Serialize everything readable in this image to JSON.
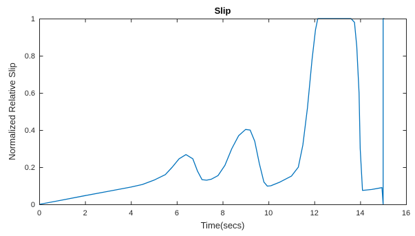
{
  "chart_data": {
    "type": "line",
    "title": "Slip",
    "xlabel": "Time(secs)",
    "ylabel": "Normalized Relative Slip",
    "xlim": [
      0,
      16
    ],
    "ylim": [
      0,
      1
    ],
    "xticks": [
      0,
      2,
      4,
      6,
      8,
      10,
      12,
      14,
      16
    ],
    "yticks": [
      0,
      0.2,
      0.4,
      0.6,
      0.8,
      1
    ],
    "xtick_labels": [
      "0",
      "2",
      "4",
      "6",
      "8",
      "10",
      "12",
      "14",
      "16"
    ],
    "ytick_labels": [
      "0",
      "0.2",
      "0.4",
      "0.6",
      "0.8",
      "1"
    ],
    "grid": false,
    "series": [
      {
        "color": "#0072bd",
        "x": [
          0,
          1,
          2,
          3,
          4,
          4.5,
          5,
          5.5,
          5.8,
          6.1,
          6.4,
          6.7,
          6.9,
          7.1,
          7.3,
          7.5,
          7.8,
          8.1,
          8.4,
          8.7,
          9.0,
          9.2,
          9.4,
          9.6,
          9.8,
          9.95,
          10.1,
          10.5,
          11.0,
          11.3,
          11.5,
          11.7,
          11.9,
          12.05,
          12.15,
          12.5,
          13.0,
          13.6,
          13.75,
          13.85,
          13.95,
          14.0,
          14.1,
          14.5,
          14.95,
          14.95,
          15.0,
          15.0,
          15.05
        ],
        "y": [
          0,
          0.023,
          0.047,
          0.07,
          0.093,
          0.107,
          0.13,
          0.16,
          0.2,
          0.245,
          0.268,
          0.245,
          0.18,
          0.133,
          0.13,
          0.135,
          0.155,
          0.21,
          0.3,
          0.37,
          0.403,
          0.4,
          0.34,
          0.22,
          0.12,
          0.098,
          0.1,
          0.12,
          0.152,
          0.2,
          0.32,
          0.52,
          0.78,
          0.94,
          1,
          1,
          1,
          1,
          0.98,
          0.85,
          0.6,
          0.3,
          0.075,
          0.08,
          0.09,
          0.09,
          0,
          1,
          1
        ]
      }
    ]
  }
}
